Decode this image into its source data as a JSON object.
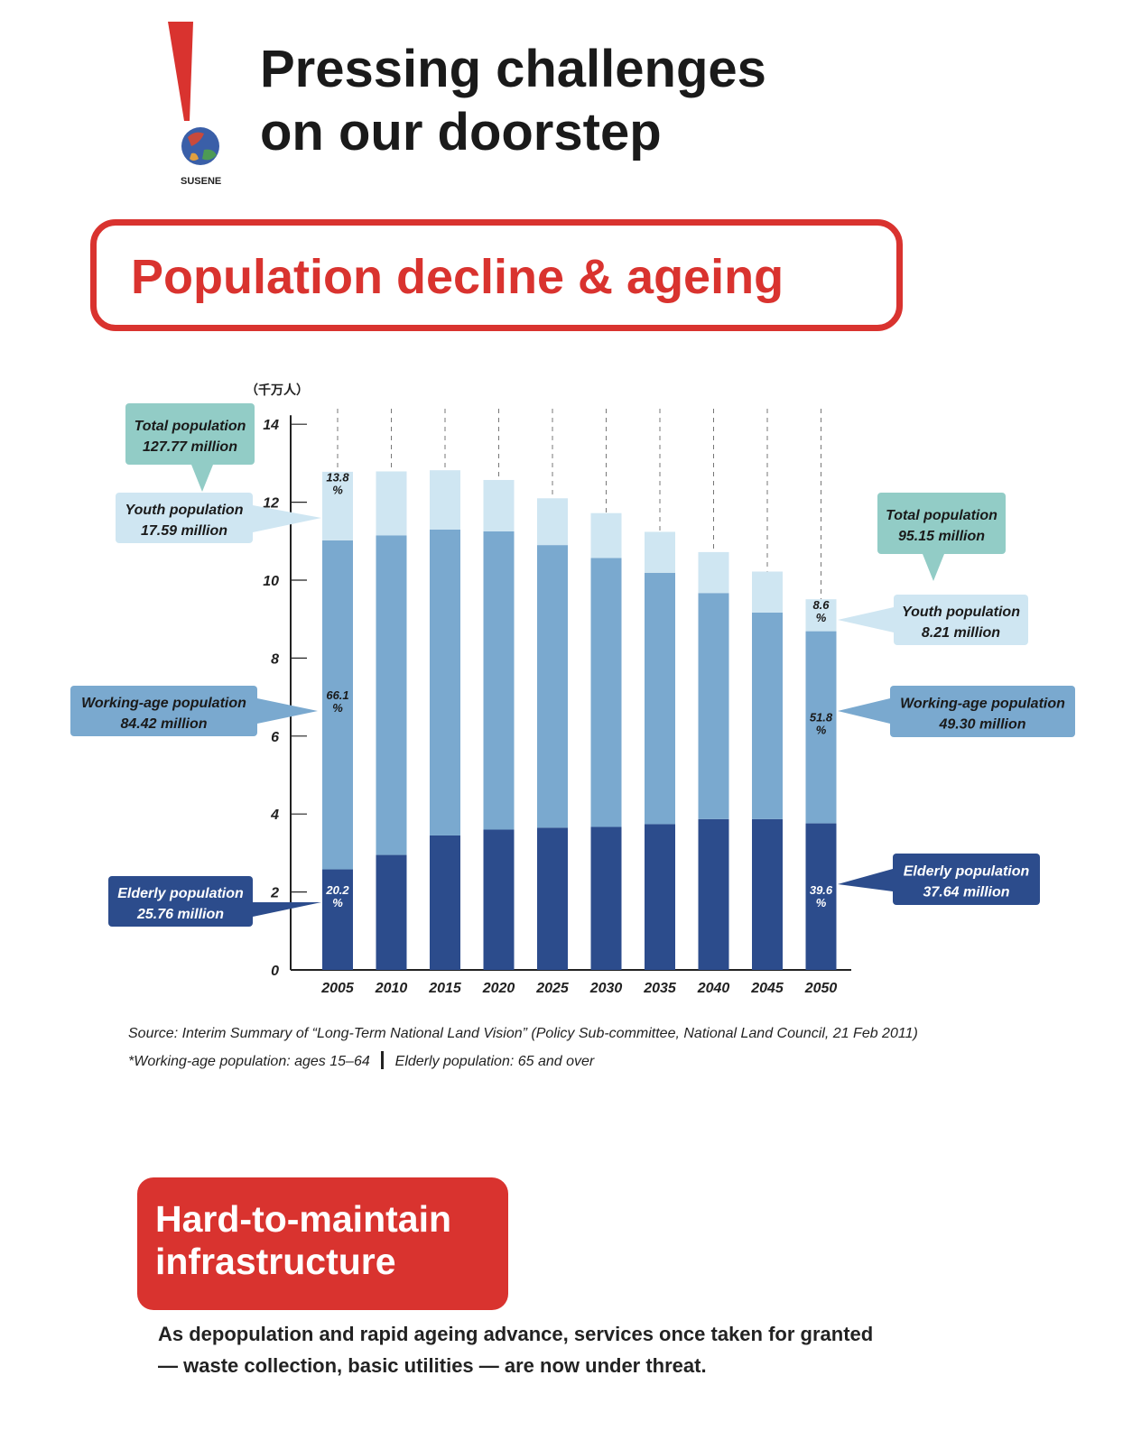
{
  "header": {
    "title_line1": "Pressing challenges",
    "title_line2": "on our doorstep",
    "logo_text": "SUSENE"
  },
  "section": {
    "title": "Population decline & ageing"
  },
  "colors": {
    "accent_red": "#d9332f",
    "elderly": "#2c4c8c",
    "working": "#7aa9cf",
    "youth": "#cfe6f2",
    "total_callout": "#92ccc6"
  },
  "chart_data": {
    "type": "bar",
    "stacked": true,
    "unit_label": "（千万人）",
    "categories": [
      "2005",
      "2010",
      "2015",
      "2020",
      "2025",
      "2030",
      "2035",
      "2040",
      "2045",
      "2050"
    ],
    "series": [
      {
        "name": "Elderly population",
        "values": [
          2.58,
          2.95,
          3.45,
          3.6,
          3.65,
          3.67,
          3.74,
          3.87,
          3.87,
          3.76
        ]
      },
      {
        "name": "Working-age population",
        "values": [
          8.44,
          8.2,
          7.85,
          7.65,
          7.25,
          6.9,
          6.45,
          5.8,
          5.3,
          4.93
        ]
      },
      {
        "name": "Youth population",
        "values": [
          1.76,
          1.64,
          1.52,
          1.32,
          1.2,
          1.15,
          1.05,
          1.05,
          1.05,
          0.82
        ]
      }
    ],
    "ylim": [
      0,
      14
    ],
    "yticks": [
      0,
      2,
      4,
      6,
      8,
      10,
      12,
      14
    ],
    "grid": false,
    "bar_percent_labels": {
      "2005": {
        "youth": [
          "13.8",
          "%"
        ],
        "working": [
          "66.1",
          "%"
        ],
        "elderly": [
          "20.2",
          "%"
        ]
      },
      "2050": {
        "youth": [
          "8.6",
          "%"
        ],
        "working": [
          "51.8",
          "%"
        ],
        "elderly": [
          "39.6",
          "%"
        ]
      }
    },
    "callouts": {
      "left": {
        "total": [
          "Total population",
          "127.77 million"
        ],
        "youth": [
          "Youth population",
          "17.59 million"
        ],
        "working": [
          "Working-age population",
          "84.42 million"
        ],
        "elderly": [
          "Elderly population",
          "25.76 million"
        ]
      },
      "right": {
        "total": [
          "Total population",
          "95.15 million"
        ],
        "youth": [
          "Youth population",
          "8.21 million"
        ],
        "working": [
          "Working-age population",
          "49.30 million"
        ],
        "elderly": [
          "Elderly population",
          "37.64 million"
        ]
      }
    }
  },
  "notes": {
    "source": "Source: Interim Summary of “Long-Term National Land Vision” (Policy Sub-committee, National Land Council, 21 Feb 2011)",
    "definitions_part1": "*Working-age population: ages 15–64",
    "definitions_part2": "Elderly population: 65 and over"
  },
  "infrastructure": {
    "title_line1": "Hard-to-maintain",
    "title_line2": "infrastructure",
    "body_line1": "As depopulation and rapid ageing advance, services once taken for granted",
    "body_line2": "— waste collection, basic utilities — are now under threat."
  }
}
